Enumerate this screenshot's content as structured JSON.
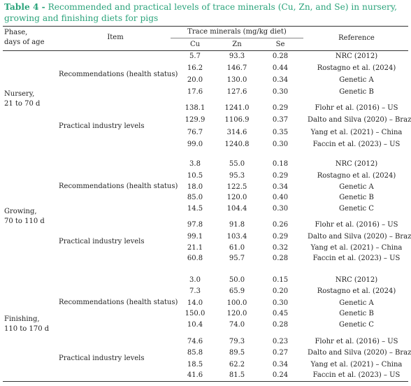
{
  "caption": {
    "label": "Table 4 -",
    "text": "Recommended and practical levels of trace minerals (Cu, Zn, and Se) in nursery, growing and finishing diets for pigs"
  },
  "headers": {
    "phase": "Phase,",
    "phase2": "days of age",
    "item": "Item",
    "group": "Trace minerals (mg/kg diet)",
    "cu": "Cu",
    "zn": "Zn",
    "se": "Se",
    "reference": "Reference"
  },
  "phases": [
    {
      "name": "Nursery,",
      "age": "21 to 70 d",
      "groups": [
        {
          "label": "Recommendations (health status)",
          "rows": [
            {
              "cu": "5.7",
              "zn": "93.3",
              "se": "0.28",
              "ref": "NRC (2012)"
            },
            {
              "cu": "16.2",
              "zn": "146.7",
              "se": "0.44",
              "ref": "Rostagno et al. (2024)"
            },
            {
              "cu": "20.0",
              "zn": "130.0",
              "se": "0.34",
              "ref": "Genetic A"
            },
            {
              "cu": "17.6",
              "zn": "127.6",
              "se": "0.30",
              "ref": "Genetic B"
            }
          ]
        },
        {
          "label": "Practical industry levels",
          "rows": [
            {
              "cu": "138.1",
              "zn": "1241.0",
              "se": "0.29",
              "ref": "Flohr et al. (2016) – US"
            },
            {
              "cu": "129.9",
              "zn": "1106.9",
              "se": "0.37",
              "ref": "Dalto and Silva (2020) – Brazil"
            },
            {
              "cu": "76.7",
              "zn": "314.6",
              "se": "0.35",
              "ref": "Yang et al. (2021) – China"
            },
            {
              "cu": "99.0",
              "zn": "1240.8",
              "se": "0.30",
              "ref": "Faccin et al. (2023) – US"
            }
          ]
        }
      ]
    },
    {
      "name": "Growing,",
      "age": "70 to 110 d",
      "groups": [
        {
          "label": "Recommendations (health status)",
          "rows": [
            {
              "cu": "3.8",
              "zn": "55.0",
              "se": "0.18",
              "ref": "NRC (2012)"
            },
            {
              "cu": "10.5",
              "zn": "95.3",
              "se": "0.29",
              "ref": "Rostagno et al. (2024)"
            },
            {
              "cu": "18.0",
              "zn": "122.5",
              "se": "0.34",
              "ref": "Genetic A"
            },
            {
              "cu": "85.0",
              "zn": "120.0",
              "se": "0.40",
              "ref": "Genetic B"
            },
            {
              "cu": "14.5",
              "zn": "104.4",
              "se": "0.30",
              "ref": "Genetic C"
            }
          ]
        },
        {
          "label": "Practical industry levels",
          "rows": [
            {
              "cu": "97.8",
              "zn": "91.8",
              "se": "0.26",
              "ref": "Flohr et al. (2016) – US"
            },
            {
              "cu": "99.1",
              "zn": "103.4",
              "se": "0.29",
              "ref": "Dalto and Silva (2020) – Brazil"
            },
            {
              "cu": "21.1",
              "zn": "61.0",
              "se": "0.32",
              "ref": "Yang et al. (2021) – China"
            },
            {
              "cu": "60.8",
              "zn": "95.7",
              "se": "0.28",
              "ref": "Faccin et al. (2023) – US"
            }
          ]
        }
      ]
    },
    {
      "name": "Finishing,",
      "age": "110 to 170 d",
      "groups": [
        {
          "label": "Recommendations (health status)",
          "rows": [
            {
              "cu": "3.0",
              "zn": "50.0",
              "se": "0.15",
              "ref": "NRC (2012)"
            },
            {
              "cu": "7.3",
              "zn": "65.9",
              "se": "0.20",
              "ref": "Rostagno et al. (2024)"
            },
            {
              "cu": "14.0",
              "zn": "100.0",
              "se": "0.30",
              "ref": "Genetic A"
            },
            {
              "cu": "150.0",
              "zn": "120.0",
              "se": "0.45",
              "ref": "Genetic B"
            },
            {
              "cu": "10.4",
              "zn": "74.0",
              "se": "0.28",
              "ref": "Genetic C"
            }
          ]
        },
        {
          "label": "Practical industry levels",
          "rows": [
            {
              "cu": "74.6",
              "zn": "79.3",
              "se": "0.23",
              "ref": "Flohr et al. (2016) – US"
            },
            {
              "cu": "85.8",
              "zn": "89.5",
              "se": "0.27",
              "ref": "Dalto and Silva (2020) – Brazil"
            },
            {
              "cu": "18.5",
              "zn": "62.2",
              "se": "0.34",
              "ref": "Yang et al. (2021) – China"
            },
            {
              "cu": "41.6",
              "zn": "81.5",
              "se": "0.24",
              "ref": "Faccin et al. (2023) – US"
            }
          ]
        }
      ]
    }
  ]
}
